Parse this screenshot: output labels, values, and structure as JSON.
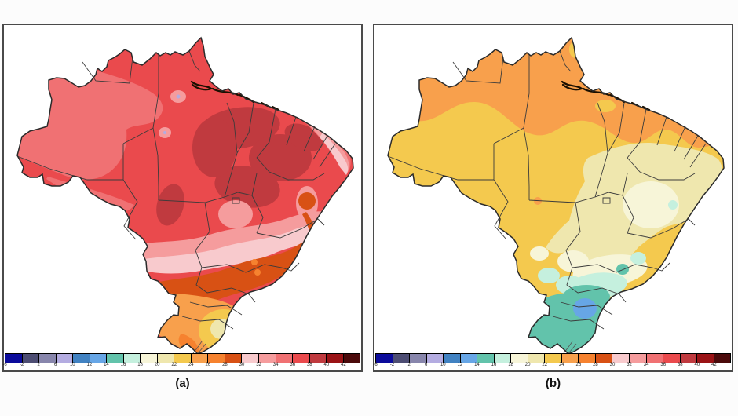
{
  "figure": {
    "caption_a": "(a)",
    "caption_b": "(b)",
    "background": "#fcfcfc",
    "panel_border": "#4a4a4a",
    "panel_bg": "#ffffff"
  },
  "colorbar": {
    "tick_labels": [
      "-6",
      "-2",
      "2",
      "6",
      "10",
      "12",
      "14",
      "16",
      "18",
      "20",
      "22",
      "24",
      "26",
      "28",
      "30",
      "32",
      "34",
      "36",
      "38",
      "40",
      "42"
    ],
    "segment_colors": [
      "#0b0b9b",
      "#4d4d73",
      "#8886ac",
      "#b4ace1",
      "#4182c2",
      "#67a6e6",
      "#62c3ab",
      "#c5f0de",
      "#f7f5d8",
      "#efe7ae",
      "#f4c94e",
      "#f8a04c",
      "#f6822f",
      "#d85114",
      "#f8cacd",
      "#f59c9d",
      "#f07173",
      "#ea4a4d",
      "#c03a3f",
      "#9a1316",
      "#4b0a0b"
    ],
    "tick_color": "#222222",
    "border_color": "#000000"
  },
  "map": {
    "outline_color": "#2b2b2b",
    "state_border_color": "#3b3b3b",
    "river_color": "#1a0f00",
    "lagoon_color": "#555555"
  },
  "chart_data": {
    "type": "heatmap",
    "subtype": "filled-contour temperature maps of Brazil, shared color scale, panels (a) and (b)",
    "scale_ticks": [
      -6,
      -2,
      2,
      6,
      10,
      12,
      14,
      16,
      18,
      20,
      22,
      24,
      26,
      28,
      30,
      32,
      34,
      36,
      38,
      40,
      42
    ],
    "panels": [
      {
        "label": "(a)",
        "zones": [
          {
            "range_c": "36-38",
            "color": "#ea4a4d",
            "area": "dominant fill over central and northern Brazil"
          },
          {
            "range_c": "34-36",
            "color": "#f07173",
            "area": "northwest / western Amazonia and southwest border strip"
          },
          {
            "range_c": "32-34",
            "color": "#f59c9d",
            "area": "two spots in central Amazonia, band across the southeast, northeast coast strip"
          },
          {
            "range_c": "38-40",
            "color": "#c03a3f",
            "area": "large blob over northeast interior plus smaller southwest patch"
          },
          {
            "range_c": "30-32",
            "color": "#f8cacd",
            "area": "inner southeast band and eastern tip sliver"
          },
          {
            "range_c": "28-30",
            "color": "#d85114",
            "area": "wide band along south/southeast coast and east-coast circle"
          },
          {
            "range_c": "26-28",
            "color": "#f6822f",
            "area": "small dots in the coastal band and hook in far south"
          },
          {
            "range_c": "24-26",
            "color": "#f8a04c",
            "area": "far south region"
          },
          {
            "range_c": "22-24",
            "color": "#f4c94e",
            "area": "patch in eastern far south"
          },
          {
            "range_c": "20-22",
            "color": "#efe7ae",
            "area": "small core inside the far-south patch"
          }
        ]
      },
      {
        "label": "(b)",
        "zones": [
          {
            "range_c": "22-24",
            "color": "#f4c94e",
            "area": "dominant central/western band"
          },
          {
            "range_c": "24-26",
            "color": "#f8a04c",
            "area": "northern band across Amazonia and northeast tip patch"
          },
          {
            "range_c": "20-22",
            "color": "#efe7ae",
            "area": "east-central region and northeast bulge"
          },
          {
            "range_c": "18-20",
            "color": "#f7f5d8",
            "area": "interior east blob and southeast band"
          },
          {
            "range_c": "16-18",
            "color": "#c5f0de",
            "area": "band over the lower southeast plus small eastern dot"
          },
          {
            "range_c": "14-16",
            "color": "#62c3ab",
            "area": "far south region and coastal dot"
          },
          {
            "range_c": "12-14",
            "color": "#67a6e6",
            "area": "blob inside the far-south region"
          }
        ]
      }
    ]
  }
}
